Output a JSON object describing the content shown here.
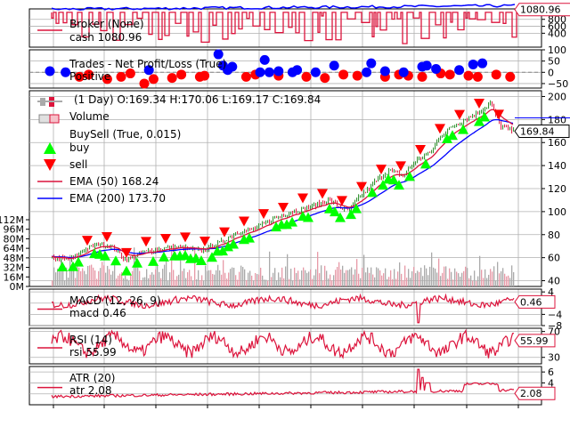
{
  "chart_data": [
    {
      "type": "line",
      "panel": "broker",
      "legend": [
        "Broker (None)",
        "cash 1080.96"
      ],
      "series": [
        {
          "name": "cash",
          "color": "#dc143c",
          "values": [
            1000,
            1000,
            880,
            1000,
            760,
            1000,
            880,
            600,
            1000,
            820,
            1000,
            760,
            1000,
            920,
            1000,
            840,
            1000,
            700,
            1000,
            960,
            1000,
            880,
            1080.96
          ]
        },
        {
          "name": "value",
          "color": "#0000ff",
          "values": [
            1000,
            1000,
            990,
            1000,
            1010,
            1000,
            1010,
            1020,
            1010,
            1030,
            1020,
            1040,
            1030,
            1050,
            1040,
            1060,
            1050,
            1070,
            1060,
            1080,
            1070,
            1085,
            1080.96
          ]
        }
      ],
      "ylim": [
        0,
        1100
      ],
      "yticks": [
        "400",
        "600",
        "800"
      ],
      "last_value_label": "1080.96"
    },
    {
      "type": "scatter",
      "panel": "trades",
      "legend": [
        "Trades - Net Profit/Loss (True)",
        "Positive"
      ],
      "positive": {
        "color": "#0000ff",
        "x": [
          0.03,
          0.21,
          0.36,
          0.37,
          0.38,
          0.39,
          0.45,
          0.46,
          0.47,
          0.49,
          0.52,
          0.53,
          0.57,
          0.61,
          0.68,
          0.69,
          0.72,
          0.76,
          0.8,
          0.81,
          0.83,
          0.88,
          0.91,
          0.93
        ],
        "y": [
          0,
          10,
          80,
          30,
          10,
          25,
          0,
          55,
          0,
          5,
          0,
          10,
          0,
          30,
          0,
          40,
          5,
          0,
          25,
          30,
          15,
          10,
          35,
          40
        ]
      },
      "negative": {
        "color": "#ff0000",
        "x": [
          0.06,
          0.08,
          0.12,
          0.15,
          0.17,
          0.2,
          0.22,
          0.26,
          0.28,
          0.32,
          0.33,
          0.42,
          0.44,
          0.49,
          0.55,
          0.59,
          0.63,
          0.66,
          0.72,
          0.75,
          0.77,
          0.8,
          0.84,
          0.86,
          0.9,
          0.92,
          0.96,
          0.99
        ],
        "y": [
          -20,
          -10,
          -30,
          -20,
          -5,
          -50,
          -30,
          -25,
          -10,
          -20,
          -15,
          -20,
          -10,
          -15,
          -20,
          -25,
          -10,
          -15,
          -20,
          -10,
          -15,
          -20,
          -5,
          -10,
          -15,
          -20,
          -10,
          -20
        ]
      },
      "ylim": [
        -70,
        100
      ],
      "yticks": [
        "50",
        "0",
        "−50",
        "100"
      ]
    },
    {
      "type": "candlestick",
      "panel": "price",
      "legend": [
        "(1 Day) O:169.34 H:170.06 L:169.17 C:169.84",
        "Volume",
        "BuySell (True, 0.015)",
        "buy",
        "sell",
        "EMA (50) 168.24",
        "EMA (200) 173.70"
      ],
      "close_keypoints": [
        [
          0.0,
          60
        ],
        [
          0.04,
          58
        ],
        [
          0.07,
          67
        ],
        [
          0.1,
          72
        ],
        [
          0.13,
          70
        ],
        [
          0.16,
          58
        ],
        [
          0.2,
          65
        ],
        [
          0.24,
          68
        ],
        [
          0.28,
          69
        ],
        [
          0.32,
          66
        ],
        [
          0.36,
          72
        ],
        [
          0.4,
          82
        ],
        [
          0.44,
          85
        ],
        [
          0.48,
          94
        ],
        [
          0.52,
          100
        ],
        [
          0.56,
          104
        ],
        [
          0.6,
          110
        ],
        [
          0.62,
          105
        ],
        [
          0.64,
          100
        ],
        [
          0.67,
          114
        ],
        [
          0.7,
          126
        ],
        [
          0.73,
          136
        ],
        [
          0.76,
          131
        ],
        [
          0.79,
          145
        ],
        [
          0.82,
          151
        ],
        [
          0.84,
          165
        ],
        [
          0.87,
          175
        ],
        [
          0.9,
          181
        ],
        [
          0.92,
          185
        ],
        [
          0.94,
          191
        ],
        [
          0.95,
          195
        ],
        [
          0.97,
          175
        ],
        [
          1.0,
          169.84
        ]
      ],
      "ema50_color": "#dc143c",
      "ema200_color": "#0000ff",
      "ylim": [
        35,
        205
      ],
      "yticks": [
        "40",
        "60",
        "80",
        "100",
        "120",
        "140",
        "160",
        "180",
        "200"
      ],
      "last_value_label": "169.84",
      "ema200_label": "173.70",
      "volume_ticks": [
        "0M",
        "16M",
        "32M",
        "48M",
        "64M",
        "80M",
        "96M",
        "112M"
      ]
    },
    {
      "type": "line",
      "panel": "macd",
      "legend": [
        "MACD (12, 26, 9)",
        "macd 0.46"
      ],
      "ylim": [
        -8,
        5
      ],
      "yticks": [
        "4",
        "0",
        "−4",
        "−8"
      ],
      "last_value_label": "0.46"
    },
    {
      "type": "line",
      "panel": "rsi",
      "legend": [
        "RSI (14)",
        "rsi 55.99"
      ],
      "ylim": [
        20,
        75
      ],
      "yticks": [
        "70",
        "30"
      ],
      "last_value_label": "55.99"
    },
    {
      "type": "line",
      "panel": "atr",
      "legend": [
        "ATR (20)",
        "atr 2.08"
      ],
      "ylim": [
        0,
        7
      ],
      "yticks": [
        "6",
        "4",
        "2"
      ],
      "last_value_label": "2.08"
    }
  ]
}
